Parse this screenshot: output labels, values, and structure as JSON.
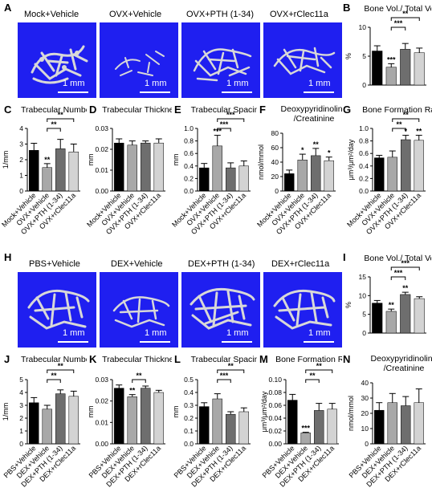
{
  "panel_letters": {
    "A": "A",
    "B": "B",
    "C": "C",
    "D": "D",
    "E": "E",
    "F": "F",
    "G": "G",
    "H": "H",
    "I": "I",
    "J": "J",
    "K": "K",
    "L": "L",
    "M": "M",
    "N": "N"
  },
  "row_a": {
    "groups": [
      "Mock+Vehicle",
      "OVX+Vehicle",
      "OVX+PTH (1-34)",
      "OVX+rClec11a"
    ],
    "scale_label": "1 mm"
  },
  "row_h": {
    "groups": [
      "PBS+Vehicle",
      "DEX+Vehicle",
      "DEX+PTH (1-34)",
      "DEX+rClec11a"
    ],
    "scale_label": "1 mm"
  },
  "colors": {
    "ct_background": "#1f1ff0",
    "bone": "#d8d8d8",
    "bar_series": [
      "#000000",
      "#a8a8a8",
      "#6e6e6e",
      "#d3d3d3"
    ]
  },
  "chart_data": [
    {
      "id": "B",
      "type": "bar",
      "title": "Bone Vol./ Total Vol.",
      "xlabel": "",
      "ylabel": "%",
      "categories": [
        "Mock+Vehicle",
        "OVX+Vehicle",
        "OVX+PTH (1-34)",
        "OVX+rClec11a"
      ],
      "show_xticklabels": false,
      "values": [
        5.9,
        3.1,
        6.2,
        5.6
      ],
      "errors": [
        0.9,
        0.6,
        1.0,
        0.8
      ],
      "ylim": [
        0,
        10
      ],
      "yticks": [
        "0",
        "5",
        "10"
      ],
      "markers": [
        "",
        "***",
        "",
        ""
      ],
      "brackets": [
        {
          "from": 1,
          "to": 3,
          "label": "**",
          "level": 2
        },
        {
          "from": 1,
          "to": 2,
          "label": "***",
          "level": 1
        }
      ]
    },
    {
      "id": "C",
      "type": "bar",
      "title": "Trabecular Number",
      "xlabel": "",
      "ylabel": "1/mm",
      "categories": [
        "Mock+Vehicle",
        "OVX+Vehicle",
        "OVX+PTH (1-34)",
        "OVX+rClec11a"
      ],
      "show_xticklabels": true,
      "values": [
        2.6,
        1.5,
        2.7,
        2.5
      ],
      "errors": [
        0.45,
        0.25,
        0.6,
        0.5
      ],
      "ylim": [
        0,
        4
      ],
      "yticks": [
        "0",
        "1",
        "2",
        "3",
        "4"
      ],
      "markers": [
        "",
        "**",
        "",
        ""
      ],
      "brackets": [
        {
          "from": 1,
          "to": 3,
          "label": "**",
          "level": 2
        },
        {
          "from": 1,
          "to": 2,
          "label": "**",
          "level": 1
        }
      ]
    },
    {
      "id": "D",
      "type": "bar",
      "title": "Trabecular Thickness",
      "xlabel": "",
      "ylabel": "mm",
      "categories": [
        "Mock+Vehicle",
        "OVX+Vehicle",
        "OVX+PTH (1-34)",
        "OVX+rClec11a"
      ],
      "show_xticklabels": true,
      "values": [
        0.023,
        0.022,
        0.023,
        0.023
      ],
      "errors": [
        0.002,
        0.002,
        0.001,
        0.002
      ],
      "ylim": [
        0,
        0.03
      ],
      "yticks": [
        "0.00",
        "0.01",
        "0.02",
        "0.03"
      ],
      "markers": [
        "",
        "",
        "",
        ""
      ],
      "brackets": []
    },
    {
      "id": "E",
      "type": "bar",
      "title": "Trabecular Spacing",
      "xlabel": "",
      "ylabel": "mm",
      "categories": [
        "Mock+Vehicle",
        "OVX+Vehicle",
        "OVX+PTH (1-34)",
        "OVX+rClec11a"
      ],
      "show_xticklabels": true,
      "values": [
        0.37,
        0.72,
        0.37,
        0.4
      ],
      "errors": [
        0.07,
        0.17,
        0.08,
        0.08
      ],
      "ylim": [
        0,
        1.0
      ],
      "yticks": [
        "0.0",
        "0.2",
        "0.4",
        "0.6",
        "0.8",
        "1.0"
      ],
      "markers": [
        "",
        "***",
        "",
        ""
      ],
      "brackets": [
        {
          "from": 1,
          "to": 3,
          "label": "***",
          "level": 2
        },
        {
          "from": 1,
          "to": 2,
          "label": "***",
          "level": 1
        }
      ]
    },
    {
      "id": "F",
      "type": "bar",
      "title": "Deoxypyridinoline /Creatinine",
      "xlabel": "",
      "ylabel": "nmol/mmol",
      "categories": [
        "Mock+Vehicle",
        "OVX+Vehicle",
        "OVX+PTH (1-34)",
        "OVX+rClec11a"
      ],
      "show_xticklabels": true,
      "values": [
        24,
        43,
        49,
        42
      ],
      "errors": [
        5,
        8,
        10,
        5
      ],
      "ylim": [
        0,
        80
      ],
      "yticks": [
        "0",
        "20",
        "40",
        "60",
        "80"
      ],
      "markers": [
        "",
        "*",
        "**",
        "*"
      ],
      "brackets": []
    },
    {
      "id": "G",
      "type": "bar",
      "title": "Bone Formation Rate",
      "xlabel": "",
      "ylabel": "μm³/μm²/day",
      "categories": [
        "Mock+Vehicle",
        "OVX+Vehicle",
        "OVX+PTH (1-34)",
        "OVX+rClec11a"
      ],
      "show_xticklabels": true,
      "values": [
        0.53,
        0.54,
        0.82,
        0.81
      ],
      "errors": [
        0.04,
        0.1,
        0.07,
        0.08
      ],
      "ylim": [
        0,
        1.0
      ],
      "yticks": [
        "0.0",
        "0.2",
        "0.4",
        "0.6",
        "0.8",
        "1.0"
      ],
      "markers": [
        "",
        "",
        "*",
        "**"
      ],
      "brackets": [
        {
          "from": 1,
          "to": 3,
          "label": "**",
          "level": 2
        },
        {
          "from": 1,
          "to": 2,
          "label": "**",
          "level": 1
        }
      ]
    },
    {
      "id": "I",
      "type": "bar",
      "title": "Bone Vol./ Total Vol.",
      "xlabel": "",
      "ylabel": "%",
      "categories": [
        "PBS+Vehicle",
        "DEX+Vehicle",
        "DEX+PTH (1-34)",
        "DEX+rClec11a"
      ],
      "show_xticklabels": false,
      "values": [
        8.0,
        5.8,
        10.3,
        9.2
      ],
      "errors": [
        0.7,
        0.6,
        0.6,
        0.5
      ],
      "ylim": [
        0,
        15
      ],
      "yticks": [
        "0",
        "5",
        "10",
        "15"
      ],
      "markers": [
        "",
        "**",
        "**",
        ""
      ],
      "brackets": [
        {
          "from": 1,
          "to": 3,
          "label": "***",
          "level": 2
        },
        {
          "from": 1,
          "to": 2,
          "label": "***",
          "level": 1
        }
      ]
    },
    {
      "id": "J",
      "type": "bar",
      "title": "Trabecular Number",
      "xlabel": "",
      "ylabel": "1/mm",
      "categories": [
        "PBS+Vehicle",
        "DEX+Vehicle",
        "DEX+PTH (1-34)",
        "DEX+rClec11a"
      ],
      "show_xticklabels": true,
      "values": [
        3.2,
        2.7,
        3.9,
        3.7
      ],
      "errors": [
        0.4,
        0.3,
        0.3,
        0.4
      ],
      "ylim": [
        0,
        5
      ],
      "yticks": [
        "0",
        "1",
        "2",
        "3",
        "4",
        "5"
      ],
      "markers": [
        "",
        "",
        "",
        ""
      ],
      "brackets": [
        {
          "from": 1,
          "to": 3,
          "label": "**",
          "level": 2
        },
        {
          "from": 1,
          "to": 2,
          "label": "**",
          "level": 1
        }
      ]
    },
    {
      "id": "K",
      "type": "bar",
      "title": "Trabecular Thickness",
      "xlabel": "",
      "ylabel": "mm",
      "categories": [
        "PBS+Vehicle",
        "DEX+Vehicle",
        "DEX+PTH (1-34)",
        "DEX+rClec11a"
      ],
      "show_xticklabels": true,
      "values": [
        0.026,
        0.022,
        0.026,
        0.024
      ],
      "errors": [
        0.0015,
        0.001,
        0.001,
        0.001
      ],
      "ylim": [
        0,
        0.03
      ],
      "yticks": [
        "0.00",
        "0.01",
        "0.02",
        "0.03"
      ],
      "markers": [
        "",
        "**",
        "",
        ""
      ],
      "brackets": [
        {
          "from": 1,
          "to": 2,
          "label": "**",
          "level": 1
        }
      ]
    },
    {
      "id": "L",
      "type": "bar",
      "title": "Trabecular Spacing",
      "xlabel": "",
      "ylabel": "mm",
      "categories": [
        "PBS+Vehicle",
        "DEX+Vehicle",
        "DEX+PTH (1-34)",
        "DEX+rClec11a"
      ],
      "show_xticklabels": true,
      "values": [
        0.29,
        0.35,
        0.23,
        0.25
      ],
      "errors": [
        0.03,
        0.04,
        0.02,
        0.03
      ],
      "ylim": [
        0,
        0.5
      ],
      "yticks": [
        "0.0",
        "0.1",
        "0.2",
        "0.3",
        "0.4",
        "0.5"
      ],
      "markers": [
        "",
        "",
        "",
        ""
      ],
      "brackets": [
        {
          "from": 1,
          "to": 3,
          "label": "**",
          "level": 2
        },
        {
          "from": 1,
          "to": 2,
          "label": "***",
          "level": 1
        }
      ]
    },
    {
      "id": "M",
      "type": "bar",
      "title": "Bone Formation Rate",
      "xlabel": "",
      "ylabel": "μm³/μm²/day",
      "categories": [
        "PBS+Vehicle",
        "DEX+Vehicle",
        "DEX+PTH (1-34)",
        "DEX+rClec11a"
      ],
      "show_xticklabels": true,
      "values": [
        0.068,
        0.017,
        0.052,
        0.054
      ],
      "errors": [
        0.009,
        0.001,
        0.011,
        0.009
      ],
      "ylim": [
        0,
        0.1
      ],
      "yticks": [
        "0.00",
        "0.02",
        "0.04",
        "0.06",
        "0.08",
        "0.10"
      ],
      "markers": [
        "",
        "***",
        "",
        ""
      ],
      "brackets": [
        {
          "from": 1,
          "to": 3,
          "label": "**",
          "level": 2
        },
        {
          "from": 1,
          "to": 2,
          "label": "**",
          "level": 1
        }
      ]
    },
    {
      "id": "N",
      "type": "bar",
      "title": "Deoxypyridinoline /Creatinine",
      "xlabel": "",
      "ylabel": "nmol/mmol",
      "categories": [
        "PBS+Vehicle",
        "DEX+Vehicle",
        "DEX+PTH (1-34)",
        "DEX+rClec11a"
      ],
      "show_xticklabels": true,
      "values": [
        22,
        27,
        25,
        27
      ],
      "errors": [
        5,
        6,
        6,
        9
      ],
      "ylim": [
        0,
        40
      ],
      "yticks": [
        "0",
        "10",
        "20",
        "30",
        "40"
      ],
      "markers": [
        "",
        "",
        "",
        ""
      ],
      "brackets": []
    }
  ]
}
